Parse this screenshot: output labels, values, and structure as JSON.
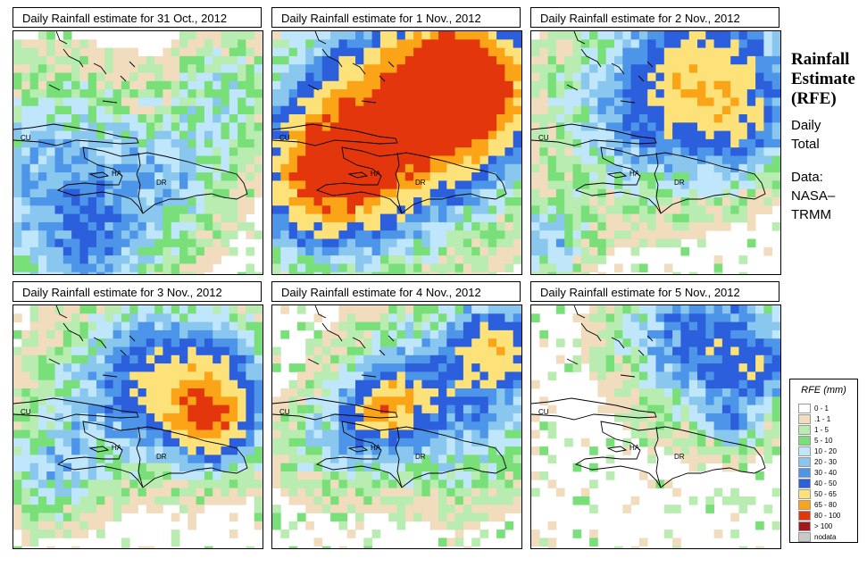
{
  "panels": [
    {
      "title": "Daily Rainfall estimate for  31 Oct., 2012",
      "seed": 11,
      "rain": [
        [
          80,
          240,
          60,
          3
        ],
        [
          40,
          140,
          70,
          2.5
        ],
        [
          180,
          150,
          50,
          2
        ],
        [
          240,
          60,
          40,
          2
        ]
      ],
      "base": 0.18
    },
    {
      "title": "Daily Rainfall estimate for  1 Nov., 2012",
      "seed": 23,
      "rain": [
        [
          210,
          60,
          55,
          9
        ],
        [
          140,
          90,
          90,
          5
        ],
        [
          40,
          170,
          55,
          4.5
        ],
        [
          90,
          130,
          60,
          4
        ]
      ],
      "base": 0.22
    },
    {
      "title": "Daily Rainfall estimate for  2 Nov., 2012",
      "seed": 37,
      "rain": [
        [
          200,
          40,
          60,
          5
        ],
        [
          120,
          90,
          70,
          3
        ],
        [
          10,
          230,
          30,
          3
        ],
        [
          240,
          110,
          40,
          2
        ]
      ],
      "base": 0.16
    },
    {
      "title": "Daily Rainfall estimate for  3 Nov., 2012",
      "seed": 41,
      "rain": [
        [
          210,
          90,
          55,
          5
        ],
        [
          120,
          80,
          60,
          3
        ],
        [
          40,
          180,
          40,
          2.5
        ],
        [
          220,
          130,
          30,
          4
        ]
      ],
      "base": 0.18
    },
    {
      "title": "Daily Rainfall estimate for  4 Nov., 2012",
      "seed": 53,
      "rain": [
        [
          200,
          90,
          70,
          4
        ],
        [
          120,
          110,
          30,
          5
        ],
        [
          250,
          40,
          30,
          4
        ],
        [
          60,
          150,
          40,
          2
        ]
      ],
      "base": 0.18
    },
    {
      "title": "Daily Rainfall estimate for  5 Nov., 2012",
      "seed": 67,
      "rain": [
        [
          190,
          30,
          60,
          4.5
        ],
        [
          250,
          70,
          30,
          2.5
        ],
        [
          220,
          130,
          20,
          2.5
        ]
      ],
      "base": 0.12
    }
  ],
  "labels": {
    "cu": "CU",
    "ha": "HA",
    "dr": "DR"
  },
  "sidebar": {
    "title_line1": "Rainfall",
    "title_line2": "Estimate",
    "title_line3": "(RFE)",
    "daily_line1": "Daily",
    "daily_line2": "Total",
    "data_line1": "Data:",
    "data_line2": "NASA–",
    "data_line3": "TRMM"
  },
  "legend": {
    "title": "RFE (mm)",
    "items": [
      {
        "label": "0 - 1",
        "color": "#ffffff"
      },
      {
        "label": ".1 - 1",
        "color": "#f1dcbd"
      },
      {
        "label": "1 - 5",
        "color": "#b8ecb0"
      },
      {
        "label": "5 - 10",
        "color": "#79e079"
      },
      {
        "label": "10 - 20",
        "color": "#bfe6fb"
      },
      {
        "label": "20 - 30",
        "color": "#89c7ef"
      },
      {
        "label": "30 - 40",
        "color": "#4d95e8"
      },
      {
        "label": "40 - 50",
        "color": "#2c5fdc"
      },
      {
        "label": "50 - 65",
        "color": "#fde27a"
      },
      {
        "label": "65 - 80",
        "color": "#fba417"
      },
      {
        "label": "80 - 100",
        "color": "#e4360c"
      },
      {
        "label": "> 100",
        "color": "#a3161a"
      },
      {
        "label": "nodata",
        "color": "#c9c9c9"
      }
    ]
  }
}
